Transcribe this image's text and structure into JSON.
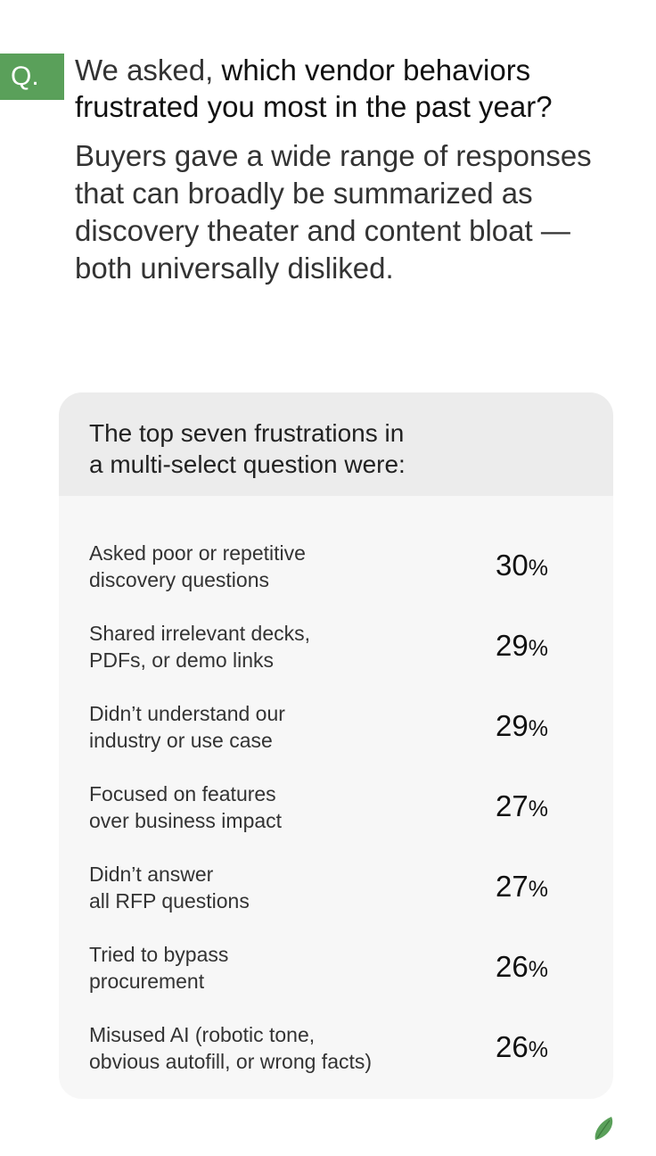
{
  "question": {
    "badge": "Q.",
    "lead": "We asked,",
    "text": "which vendor behaviors frustrated you most in the past year?"
  },
  "summary": "Buyers gave a wide range of responses that can broadly be summarized as discovery theater and content bloat — both universally disliked.",
  "card": {
    "header_line1": "The top seven frustrations in",
    "header_line2": "a multi-select question were:",
    "rows": [
      {
        "line1": "Asked poor or repetitive",
        "line2": "discovery questions",
        "value": "30",
        "unit": "%"
      },
      {
        "line1": "Shared irrelevant decks,",
        "line2": "PDFs, or demo links",
        "value": "29",
        "unit": "%"
      },
      {
        "line1": "Didn’t understand our",
        "line2": "industry or use case",
        "value": "29",
        "unit": "%"
      },
      {
        "line1": "Focused on features",
        "line2": "over business impact",
        "value": "27",
        "unit": "%"
      },
      {
        "line1": "Didn’t answer",
        "line2": "all RFP questions",
        "value": "27",
        "unit": "%"
      },
      {
        "line1": "Tried to bypass",
        "line2": "procurement",
        "value": "26",
        "unit": "%"
      },
      {
        "line1": "Misused AI (robotic tone,",
        "line2": "obvious autofill, or wrong facts)",
        "value": "26",
        "unit": "%"
      }
    ]
  },
  "logo": {
    "icon": "leaf-logo-icon",
    "color": "#5aa05a"
  },
  "colors": {
    "accent": "#5aa05a",
    "card_bg": "#f7f7f7",
    "card_header_bg": "#ececec"
  }
}
